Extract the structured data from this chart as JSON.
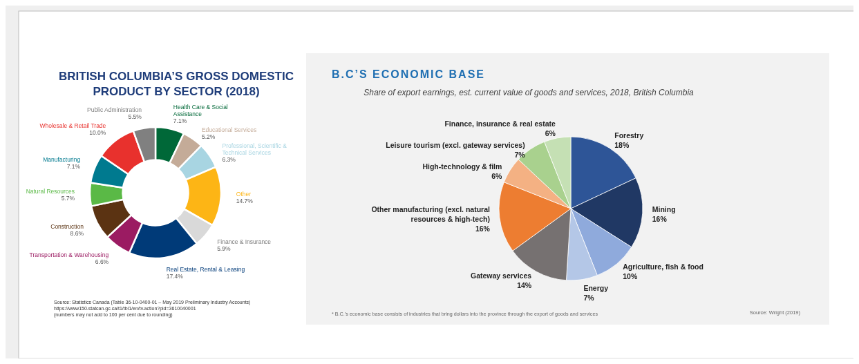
{
  "chart_data": [
    {
      "type": "donut",
      "title": "BRITISH COLUMBIA’S GROSS DOMESTIC PRODUCT BY SECTOR (2018)",
      "categories": [
        "Health Care & Social Assistance",
        "Educational Services",
        "Professional, Scientific & Technical Services",
        "Other",
        "Finance & Insurance",
        "Real Estate, Rental & Leasing",
        "Transportation & Warehousing",
        "Construction",
        "Natural Resources",
        "Manufacturing",
        "Wholesale & Retail Trade",
        "Public Administration"
      ],
      "values": [
        7.1,
        5.2,
        6.3,
        14.7,
        5.9,
        17.4,
        6.6,
        8.6,
        5.7,
        7.1,
        10.0,
        5.5
      ],
      "value_labels": [
        "7.1%",
        "5.2%",
        "6.3%",
        "14.7%",
        "5.9%",
        "17.4%",
        "6.6%",
        "8.6%",
        "5.7%",
        "7.1%",
        "10.0%",
        "5.5%"
      ],
      "colors": [
        "#006838",
        "#c4ab98",
        "#a8d5e2",
        "#fdb515",
        "#d9d9d9",
        "#003a78",
        "#9b1b62",
        "#5b3312",
        "#5ab946",
        "#007a8f",
        "#e8312d",
        "#808080"
      ],
      "annotations": [
        "Source: Statistics Canada (Table 36-10-0400-01 – May 2019 Preliminary Industry Accounts)",
        "https://www150.statcan.gc.ca/t1/tbl1/en/tv.action?pid=3610040001",
        "(numbers may not add to 100 per cent due to rounding)"
      ]
    },
    {
      "type": "pie",
      "title": "B.C’S ECONOMIC BASE",
      "subtitle": "Share of export earnings, est. current value of goods and services, 2018, British Columbia",
      "categories": [
        "Forestry",
        "Mining",
        "Agriculture, fish & food",
        "Energy",
        "Gateway services",
        "Other manufacturing (excl. natural resources & high-tech)",
        "High-technology & film",
        "Leisure tourism (excl. gateway services)",
        "Finance, insurance & real estate"
      ],
      "values": [
        18,
        16,
        10,
        7,
        14,
        16,
        6,
        7,
        6
      ],
      "value_labels": [
        "18%",
        "16%",
        "10%",
        "7%",
        "14%",
        "16%",
        "6%",
        "7%",
        "6%"
      ],
      "colors": [
        "#2e5597",
        "#203864",
        "#8faadc",
        "#b4c7e7",
        "#767171",
        "#ed7d31",
        "#f4b183",
        "#a9d18e",
        "#c5e0b4"
      ],
      "annotations": [
        "* B.C.’s economic base consists of industries that bring dollars into the province through the export of goods and services",
        "Source: Wright (2019)"
      ]
    }
  ]
}
